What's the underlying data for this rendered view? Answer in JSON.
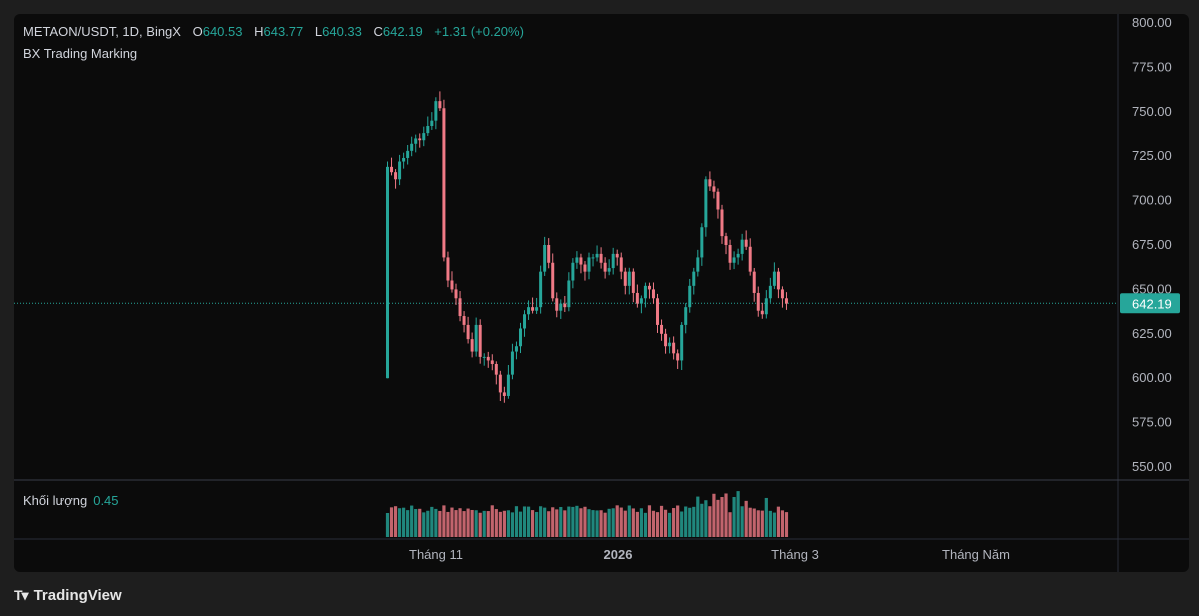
{
  "legend": {
    "symbol": "METAON/USDT, 1D, BingX",
    "open_label": "O",
    "open": "640.53",
    "high_label": "H",
    "high": "643.77",
    "low_label": "L",
    "low": "640.33",
    "close_label": "C",
    "close": "642.19",
    "change": "+1.31 (+0.20%)",
    "indicator": "BX Trading Marking"
  },
  "volume_legend": {
    "label": "Khối lượng",
    "value": "0.45"
  },
  "brand": {
    "name": "TradingView"
  },
  "colors": {
    "up": "#26a69a",
    "down": "#f07a86",
    "bg": "#0b0b0b",
    "text": "#d1d4dc",
    "price_label_bg": "#26a69a"
  },
  "chart_data": {
    "type": "candlestick",
    "symbol": "METAON/USDT",
    "interval": "1D",
    "exchange": "BingX",
    "last_price": "642.19",
    "y_ticks": [
      "800.00",
      "775.00",
      "750.00",
      "725.00",
      "700.00",
      "675.00",
      "650.00",
      "625.00",
      "600.00",
      "575.00",
      "550.00"
    ],
    "ylim": [
      550,
      800
    ],
    "x_ticks": [
      "Tháng 11",
      "2026",
      "Tháng 3",
      "Tháng Năm"
    ],
    "closes": [
      719,
      716,
      712,
      722,
      724,
      728,
      732,
      735,
      734,
      738,
      742,
      745,
      756,
      752,
      668,
      655,
      650,
      645,
      635,
      630,
      622,
      615,
      630,
      612,
      612,
      610,
      608,
      602,
      592,
      590,
      602,
      615,
      618,
      628,
      636,
      640,
      638,
      640,
      660,
      675,
      665,
      645,
      638,
      642,
      640,
      655,
      665,
      668,
      664,
      660,
      668,
      668,
      670,
      665,
      660,
      662,
      670,
      668,
      660,
      652,
      660,
      648,
      642,
      645,
      652,
      650,
      645,
      630,
      625,
      618,
      620,
      614,
      610,
      630,
      640,
      652,
      660,
      668,
      685,
      712,
      708,
      705,
      695,
      680,
      675,
      665,
      668,
      670,
      678,
      674,
      660,
      648,
      638,
      636,
      645,
      652,
      660,
      650,
      645,
      642
    ]
  }
}
